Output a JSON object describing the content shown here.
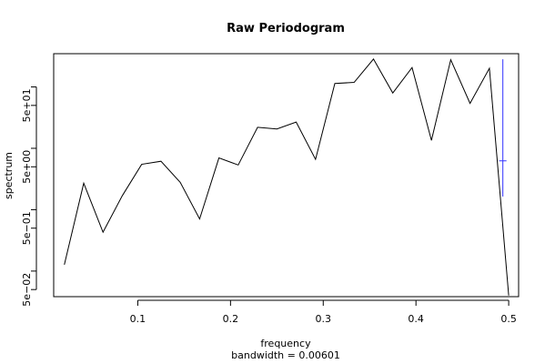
{
  "chart_data": {
    "type": "line",
    "title": "Raw Periodogram",
    "xlabel": "frequency",
    "ylabel": "spectrum",
    "subtitle": "bandwidth = 0.00601",
    "y_scale": "log",
    "xlim": [
      0.0093,
      0.5107
    ],
    "ylim": [
      0.0383,
      348
    ],
    "x_ticks": [
      0.1,
      0.2,
      0.3,
      0.4,
      0.5
    ],
    "x_tick_labels": [
      "0.1",
      "0.2",
      "0.3",
      "0.4",
      "0.5"
    ],
    "y_major_ticks": [
      0.05,
      0.5,
      5,
      50
    ],
    "y_tick_labels": [
      "5e−02",
      "5e−01",
      "5e+00",
      "5e+01"
    ],
    "y_minor_ticks": [
      0.1,
      1,
      10,
      100
    ],
    "grid": false,
    "series": [
      {
        "color": "#000000",
        "x": [
          0.0208,
          0.0417,
          0.0625,
          0.0833,
          0.1042,
          0.125,
          0.1458,
          0.1667,
          0.1875,
          0.2083,
          0.2292,
          0.25,
          0.2708,
          0.2917,
          0.3125,
          0.3333,
          0.3542,
          0.375,
          0.3958,
          0.4167,
          0.4375,
          0.4583,
          0.4792,
          0.5
        ],
        "y": [
          0.127,
          2.7,
          0.43,
          1.69,
          5.49,
          6.15,
          2.79,
          0.706,
          6.97,
          5.35,
          21.98,
          20.65,
          26.74,
          6.6,
          113.7,
          118.7,
          284.3,
          79.7,
          207.2,
          13.49,
          277.5,
          54.0,
          201.4,
          0.04
        ]
      }
    ],
    "confidence_bar": {
      "color": "#3333ff",
      "x": 0.4937,
      "center": 6.25,
      "lower": 1.64,
      "upper": 282
    }
  }
}
